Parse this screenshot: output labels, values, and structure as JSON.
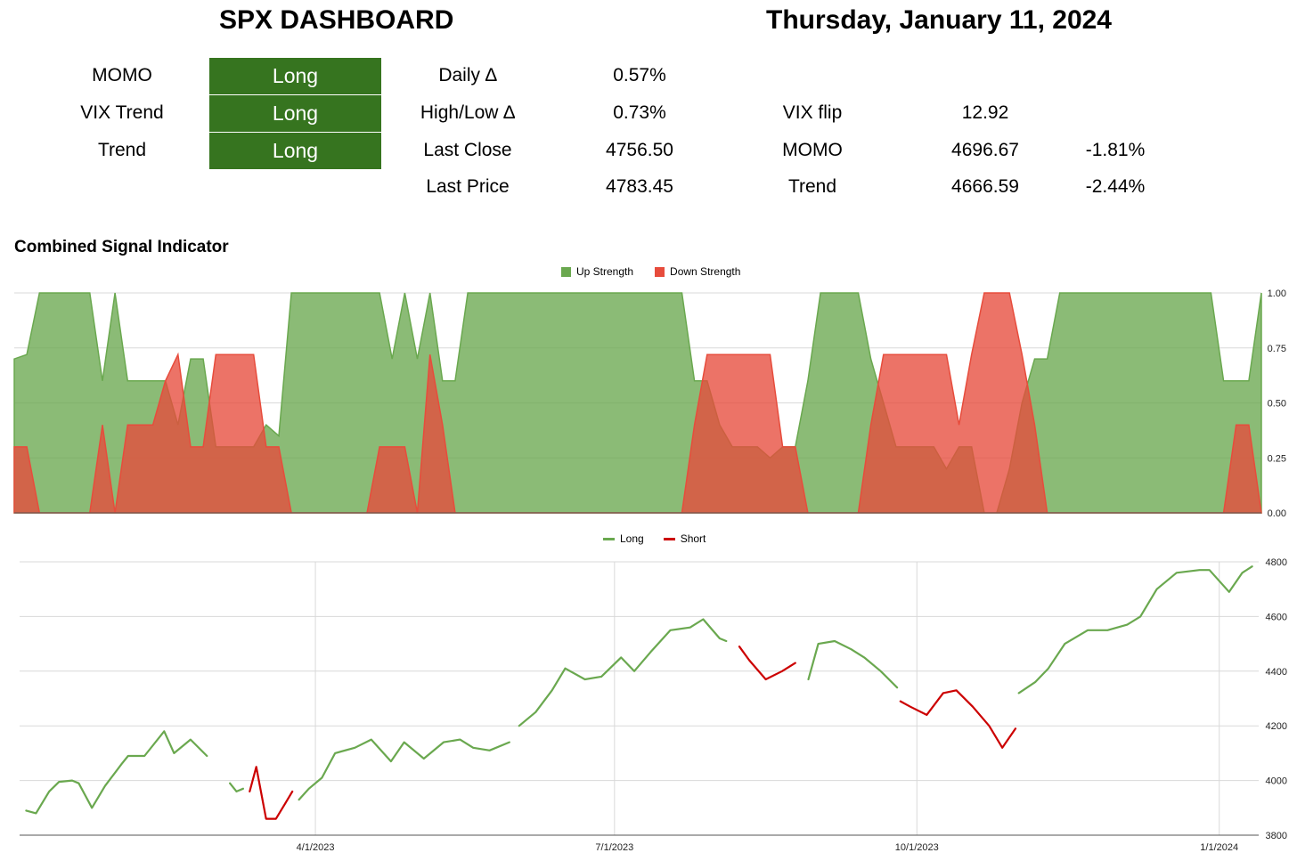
{
  "header": {
    "title": "SPX DASHBOARD",
    "date": "Thursday, January 11, 2024"
  },
  "signals": [
    {
      "label": "MOMO",
      "value": "Long"
    },
    {
      "label": "VIX Trend",
      "value": "Long"
    },
    {
      "label": "Trend",
      "value": "Long"
    }
  ],
  "stats": {
    "daily_delta_label": "Daily ∆",
    "daily_delta_value": "0.57%",
    "highlow_label": "High/Low ∆",
    "highlow_value": "0.73%",
    "last_close_label": "Last Close",
    "last_close_value": "4756.50",
    "last_price_label": "Last Price",
    "last_price_value": "4783.45",
    "vix_flip_label": "VIX flip",
    "vix_flip_value": "12.92",
    "momo_label": "MOMO",
    "momo_value": "4696.67",
    "momo_pct": "-1.81%",
    "trend_label": "Trend",
    "trend_value": "4666.59",
    "trend_pct": "-2.44%"
  },
  "chart_data": [
    {
      "type": "area",
      "title": "Combined Signal Indicator",
      "legend": {
        "placement": "top",
        "entries": [
          "Up Strength",
          "Down Strength"
        ]
      },
      "colors": {
        "Up Strength": "#6aa84f",
        "Down Strength": "#e74c3c"
      },
      "ylim": [
        0,
        1
      ],
      "yticks": [
        "1.00",
        "0.75",
        "0.50",
        "0.25",
        "0.00"
      ],
      "grid": true,
      "x": [
        0,
        1,
        2,
        3,
        4,
        5,
        6,
        7,
        8,
        9,
        10,
        11,
        12,
        13,
        14,
        15,
        16,
        17,
        18,
        19,
        20,
        21,
        22,
        23,
        24,
        25,
        26,
        27,
        28,
        29,
        30,
        31,
        32,
        33,
        34,
        35,
        36,
        37,
        38,
        39,
        40,
        41,
        42,
        43,
        44,
        45,
        46,
        47,
        48,
        49,
        50,
        51,
        52,
        53,
        54,
        55,
        56,
        57,
        58,
        59,
        60,
        61,
        62,
        63,
        64,
        65,
        66,
        67,
        68,
        69,
        70,
        71,
        72,
        73,
        74,
        75,
        76,
        77,
        78,
        79,
        80,
        81,
        82,
        83,
        84,
        85,
        86,
        87,
        88,
        89,
        90,
        91,
        92,
        93,
        94,
        95,
        96,
        97,
        98,
        99
      ],
      "series": [
        {
          "name": "Up Strength",
          "values": [
            0.7,
            0.72,
            1.0,
            1.0,
            1.0,
            1.0,
            1.0,
            0.6,
            1.0,
            0.6,
            0.6,
            0.6,
            0.6,
            0.4,
            0.7,
            0.7,
            0.3,
            0.3,
            0.3,
            0.3,
            0.4,
            0.35,
            1.0,
            1.0,
            1.0,
            1.0,
            1.0,
            1.0,
            1.0,
            1.0,
            0.7,
            1.0,
            0.7,
            1.0,
            0.6,
            0.6,
            1.0,
            1.0,
            1.0,
            1.0,
            1.0,
            1.0,
            1.0,
            1.0,
            1.0,
            1.0,
            1.0,
            1.0,
            1.0,
            1.0,
            1.0,
            1.0,
            1.0,
            1.0,
            0.6,
            0.6,
            0.4,
            0.3,
            0.3,
            0.3,
            0.25,
            0.3,
            0.3,
            0.6,
            1.0,
            1.0,
            1.0,
            1.0,
            0.7,
            0.5,
            0.3,
            0.3,
            0.3,
            0.3,
            0.2,
            0.3,
            0.3,
            0.0,
            0.0,
            0.2,
            0.5,
            0.7,
            0.7,
            1.0,
            1.0,
            1.0,
            1.0,
            1.0,
            1.0,
            1.0,
            1.0,
            1.0,
            1.0,
            1.0,
            1.0,
            1.0,
            0.6,
            0.6,
            0.6,
            1.0
          ]
        },
        {
          "name": "Down Strength",
          "values": [
            0.3,
            0.3,
            0.0,
            0.0,
            0.0,
            0.0,
            0.0,
            0.4,
            0.0,
            0.4,
            0.4,
            0.4,
            0.6,
            0.72,
            0.3,
            0.3,
            0.72,
            0.72,
            0.72,
            0.72,
            0.3,
            0.3,
            0.0,
            0.0,
            0.0,
            0.0,
            0.0,
            0.0,
            0.0,
            0.3,
            0.3,
            0.3,
            0.0,
            0.72,
            0.4,
            0.0,
            0.0,
            0.0,
            0.0,
            0.0,
            0.0,
            0.0,
            0.0,
            0.0,
            0.0,
            0.0,
            0.0,
            0.0,
            0.0,
            0.0,
            0.0,
            0.0,
            0.0,
            0.0,
            0.4,
            0.72,
            0.72,
            0.72,
            0.72,
            0.72,
            0.72,
            0.3,
            0.3,
            0.0,
            0.0,
            0.0,
            0.0,
            0.0,
            0.4,
            0.72,
            0.72,
            0.72,
            0.72,
            0.72,
            0.72,
            0.4,
            0.72,
            1.0,
            1.0,
            1.0,
            0.72,
            0.4,
            0.0,
            0.0,
            0.0,
            0.0,
            0.0,
            0.0,
            0.0,
            0.0,
            0.0,
            0.0,
            0.0,
            0.0,
            0.0,
            0.0,
            0.0,
            0.4,
            0.4,
            0.0
          ]
        }
      ]
    },
    {
      "type": "line",
      "legend": {
        "placement": "top",
        "entries": [
          "Long",
          "Short"
        ]
      },
      "colors": {
        "Long": "#6aa84f",
        "Short": "#cc0000"
      },
      "ylim": [
        3800,
        4800
      ],
      "yticks": [
        "4800",
        "4600",
        "4400",
        "4200",
        "4000",
        "3800"
      ],
      "xticks": [
        "4/1/2023",
        "7/1/2023",
        "10/1/2023",
        "1/1/2024"
      ],
      "grid": true,
      "series": [
        {
          "name": "Long",
          "segments": [
            {
              "x": [
                "2023-01-03",
                "2023-01-06",
                "2023-01-10",
                "2023-01-13",
                "2023-01-17",
                "2023-01-19",
                "2023-01-23",
                "2023-01-27",
                "2023-02-01",
                "2023-02-03",
                "2023-02-08",
                "2023-02-14",
                "2023-02-17",
                "2023-02-22",
                "2023-02-27"
              ],
              "y": [
                3890,
                3880,
                3960,
                3995,
                4000,
                3990,
                3900,
                3980,
                4060,
                4090,
                4090,
                4180,
                4100,
                4150,
                4090
              ]
            },
            {
              "x": [
                "2023-03-06",
                "2023-03-08",
                "2023-03-10"
              ],
              "y": [
                3990,
                3960,
                3970
              ]
            },
            {
              "x": [
                "2023-03-27",
                "2023-03-30",
                "2023-04-03",
                "2023-04-07",
                "2023-04-13",
                "2023-04-18",
                "2023-04-24",
                "2023-04-28",
                "2023-05-04",
                "2023-05-10",
                "2023-05-15",
                "2023-05-19",
                "2023-05-24",
                "2023-05-30"
              ],
              "y": [
                3930,
                3970,
                4010,
                4100,
                4120,
                4150,
                4070,
                4140,
                4080,
                4140,
                4150,
                4120,
                4110,
                4140
              ]
            },
            {
              "x": [
                "2023-06-02",
                "2023-06-07",
                "2023-06-12",
                "2023-06-16",
                "2023-06-22",
                "2023-06-27",
                "2023-07-03",
                "2023-07-07",
                "2023-07-12",
                "2023-07-18",
                "2023-07-24",
                "2023-07-28",
                "2023-08-02",
                "2023-08-04"
              ],
              "y": [
                4200,
                4250,
                4330,
                4410,
                4370,
                4380,
                4450,
                4400,
                4470,
                4550,
                4560,
                4590,
                4520,
                4510
              ]
            },
            {
              "x": [
                "2023-08-29",
                "2023-09-01",
                "2023-09-06",
                "2023-09-11",
                "2023-09-15",
                "2023-09-20",
                "2023-09-25"
              ],
              "y": [
                4370,
                4500,
                4510,
                4480,
                4450,
                4400,
                4340
              ]
            },
            {
              "x": [
                "2023-11-01",
                "2023-11-06",
                "2023-11-10",
                "2023-11-15",
                "2023-11-22",
                "2023-11-28",
                "2023-12-04",
                "2023-12-08",
                "2023-12-13",
                "2023-12-19",
                "2023-12-26",
                "2023-12-29",
                "2024-01-04",
                "2024-01-08",
                "2024-01-11"
              ],
              "y": [
                4320,
                4360,
                4410,
                4500,
                4550,
                4550,
                4570,
                4600,
                4700,
                4760,
                4770,
                4770,
                4690,
                4760,
                4783
              ]
            }
          ]
        },
        {
          "name": "Short",
          "segments": [
            {
              "x": [
                "2023-03-12",
                "2023-03-14",
                "2023-03-17",
                "2023-03-20",
                "2023-03-23",
                "2023-03-25"
              ],
              "y": [
                3960,
                4050,
                3860,
                3860,
                3920,
                3960
              ]
            },
            {
              "x": [
                "2023-08-08",
                "2023-08-11",
                "2023-08-16",
                "2023-08-21",
                "2023-08-25"
              ],
              "y": [
                4490,
                4440,
                4370,
                4400,
                4430
              ]
            },
            {
              "x": [
                "2023-09-26",
                "2023-09-29",
                "2023-10-04",
                "2023-10-09",
                "2023-10-13",
                "2023-10-18",
                "2023-10-23",
                "2023-10-27",
                "2023-10-31"
              ],
              "y": [
                4290,
                4270,
                4240,
                4320,
                4330,
                4270,
                4200,
                4120,
                4190
              ]
            }
          ]
        }
      ]
    }
  ]
}
